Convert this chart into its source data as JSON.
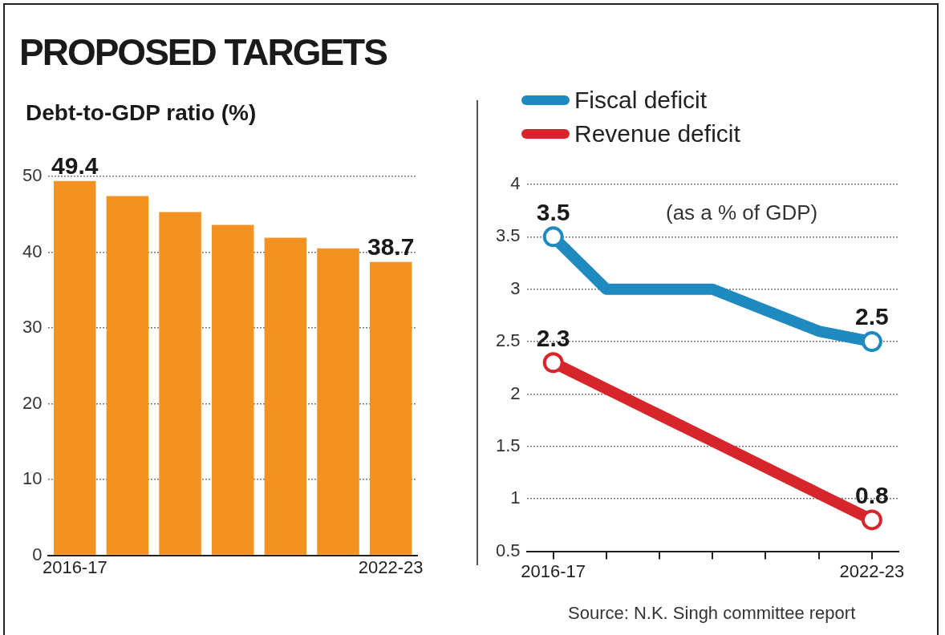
{
  "chart_data": [
    {
      "type": "bar",
      "title": "PROPOSED TARGETS",
      "subtitle": "Debt-to-GDP ratio (%)",
      "categories": [
        "2016-17",
        null,
        null,
        null,
        null,
        null,
        "2022-23"
      ],
      "values": [
        49.4,
        47.4,
        45.3,
        43.6,
        41.9,
        40.5,
        38.7
      ],
      "color": "#f39220",
      "value_labels": [
        "49.4",
        null,
        null,
        null,
        null,
        null,
        "38.7"
      ],
      "ylim": [
        0,
        50
      ],
      "yticks": [
        0,
        10,
        20,
        30,
        40,
        50
      ],
      "grid": "y",
      "legend": false
    },
    {
      "type": "line",
      "categories": [
        "2016-17",
        null,
        null,
        null,
        null,
        null,
        "2022-23"
      ],
      "series": [
        {
          "name": "Fiscal deficit",
          "color": "#1f8ac0",
          "values": [
            3.5,
            3.0,
            3.0,
            3.0,
            2.8,
            2.6,
            2.5
          ],
          "value_labels": [
            "3.5",
            null,
            null,
            null,
            null,
            null,
            "2.5"
          ]
        },
        {
          "name": "Revenue deficit",
          "color": "#d7262b",
          "values": [
            2.3,
            2.05,
            1.8,
            1.55,
            1.3,
            1.05,
            0.8
          ],
          "value_labels": [
            "2.3",
            null,
            null,
            null,
            null,
            null,
            "0.8"
          ]
        }
      ],
      "ylim": [
        0.5,
        4
      ],
      "yticks": [
        0.5,
        1,
        1.5,
        2,
        2.5,
        3,
        3.5,
        4
      ],
      "grid": "y",
      "legend": "top left",
      "line_style": "solid",
      "annotations": [
        "(as a % of GDP)",
        "Source: N.K. Singh committee report"
      ]
    }
  ]
}
